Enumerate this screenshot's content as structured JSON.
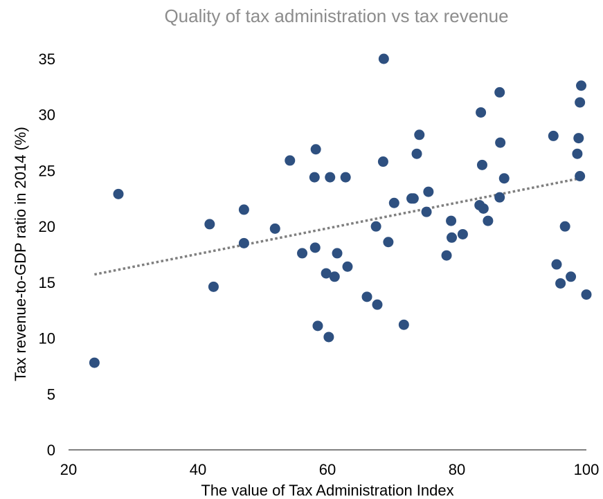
{
  "chart_data": {
    "type": "scatter",
    "title": "Quality of tax administration vs tax revenue",
    "xlabel": "The value of Tax Administration Index",
    "ylabel": "Tax revenue-to-GDP ratio in 2014 (%)",
    "xlim": [
      20,
      100
    ],
    "ylim": [
      0,
      35
    ],
    "xticks": [
      "20",
      "40",
      "60",
      "80",
      "100"
    ],
    "yticks": [
      "0",
      "5",
      "10",
      "15",
      "20",
      "25",
      "30",
      "35"
    ],
    "grid": false,
    "legend": "none",
    "trendline": {
      "type": "linear",
      "style": "dotted",
      "x": [
        24,
        99
      ],
      "y": [
        15.7,
        24.3
      ]
    },
    "series": [
      {
        "points": [
          [
            24,
            7.8
          ],
          [
            27.7,
            22.9
          ],
          [
            41.8,
            20.2
          ],
          [
            42.4,
            14.6
          ],
          [
            47.1,
            21.5
          ],
          [
            47.1,
            18.5
          ],
          [
            51.9,
            19.8
          ],
          [
            54.2,
            25.9
          ],
          [
            56.1,
            17.6
          ],
          [
            58,
            24.4
          ],
          [
            58.1,
            18.1
          ],
          [
            58.2,
            26.9
          ],
          [
            58.5,
            11.1
          ],
          [
            59.8,
            15.8
          ],
          [
            60.2,
            10.1
          ],
          [
            60.4,
            24.4
          ],
          [
            61.1,
            15.5
          ],
          [
            61.5,
            17.6
          ],
          [
            62.8,
            24.4
          ],
          [
            63.1,
            16.4
          ],
          [
            66.1,
            13.7
          ],
          [
            67.5,
            20
          ],
          [
            67.7,
            13
          ],
          [
            68.6,
            25.8
          ],
          [
            68.7,
            35
          ],
          [
            69.4,
            18.6
          ],
          [
            70.3,
            22.1
          ],
          [
            71.8,
            11.2
          ],
          [
            73,
            22.5
          ],
          [
            73.3,
            22.5
          ],
          [
            73.8,
            26.5
          ],
          [
            74.2,
            28.2
          ],
          [
            75.3,
            21.3
          ],
          [
            75.6,
            23.1
          ],
          [
            78.4,
            17.4
          ],
          [
            79.1,
            20.5
          ],
          [
            79.2,
            19
          ],
          [
            80.9,
            19.3
          ],
          [
            83.5,
            21.9
          ],
          [
            83.7,
            30.2
          ],
          [
            83.9,
            25.5
          ],
          [
            84.1,
            21.6
          ],
          [
            84.8,
            20.5
          ],
          [
            86.6,
            32
          ],
          [
            86.6,
            22.6
          ],
          [
            86.7,
            27.5
          ],
          [
            87.3,
            24.3
          ],
          [
            94.9,
            28.1
          ],
          [
            95.4,
            16.6
          ],
          [
            96,
            14.9
          ],
          [
            96.7,
            20
          ],
          [
            97.6,
            15.5
          ],
          [
            98.6,
            26.5
          ],
          [
            98.8,
            27.9
          ],
          [
            99,
            24.5
          ],
          [
            99,
            31.1
          ],
          [
            99.2,
            32.6
          ],
          [
            100,
            13.9
          ]
        ]
      }
    ],
    "colors": {
      "marker": "#2e5080",
      "trendline": "#7f7f7f",
      "title": "#8c8c8c",
      "axis": "#000000"
    }
  }
}
